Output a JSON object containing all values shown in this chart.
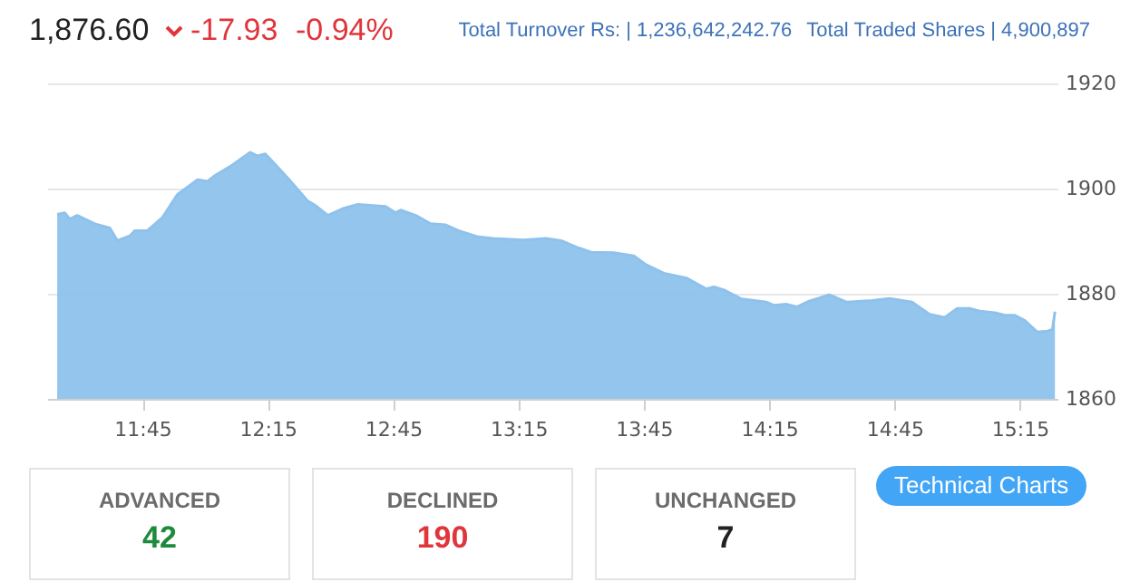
{
  "chart_data": [
    {
      "type": "area",
      "title": "1,876.60",
      "annotations": [
        "-17.93",
        "-0.94%",
        "Total Turnover Rs: | 1,236,642,242.76",
        "Total Traded Shares | 4,900,897"
      ],
      "series": [
        {
          "color": "#8ec2ec",
          "x": [
            11.41,
            11.44,
            11.46,
            11.49,
            11.56,
            11.62,
            11.65,
            11.7,
            11.72,
            11.77,
            11.83,
            11.89,
            11.97,
            12.01,
            12.04,
            12.1,
            12.18,
            12.21,
            12.24,
            12.27,
            12.33,
            12.41,
            12.44,
            12.49,
            12.55,
            12.61,
            12.72,
            12.76,
            12.78,
            12.84,
            12.9,
            12.96,
            13.01,
            13.09,
            13.15,
            13.27,
            13.36,
            13.42,
            13.49,
            13.54,
            13.63,
            13.71,
            13.76,
            13.83,
            13.92,
            14.0,
            14.03,
            14.07,
            14.14,
            14.24,
            14.27,
            14.32,
            14.36,
            14.41,
            14.49,
            14.56,
            14.66,
            14.73,
            14.82,
            14.89,
            14.95,
            15.0,
            15.05,
            15.09,
            15.15,
            15.19,
            15.23,
            15.27,
            15.32,
            15.36,
            15.38,
            15.39
          ],
          "values": [
            1895.1,
            1895.4,
            1894.2,
            1894.9,
            1893.3,
            1892.5,
            1890.1,
            1891,
            1892,
            1892,
            1894.5,
            1898.9,
            1901.7,
            1901.4,
            1902.5,
            1904.2,
            1906.9,
            1906.2,
            1906.6,
            1905.1,
            1902,
            1897.6,
            1896.8,
            1894.9,
            1896.2,
            1897,
            1896.6,
            1895.4,
            1895.9,
            1894.9,
            1893.3,
            1893.1,
            1892,
            1890.8,
            1890.5,
            1890.2,
            1890.5,
            1890.1,
            1888.7,
            1887.9,
            1887.8,
            1887.2,
            1885.5,
            1883.9,
            1883,
            1880.9,
            1881.3,
            1880.7,
            1879,
            1878.4,
            1877.8,
            1878,
            1877.5,
            1878.6,
            1879.8,
            1878.4,
            1878.7,
            1879.1,
            1878.4,
            1876.1,
            1875.5,
            1877.2,
            1877.2,
            1876.7,
            1876.4,
            1875.9,
            1875.9,
            1874.9,
            1872.7,
            1872.9,
            1873.2,
            1876.6
          ]
        }
      ],
      "xlim": [
        11.37,
        15.4
      ],
      "xticks": [
        {
          "value": 11.75,
          "label": "11:45"
        },
        {
          "value": 12.25,
          "label": "12:15"
        },
        {
          "value": 12.75,
          "label": "12:45"
        },
        {
          "value": 13.25,
          "label": "13:15"
        },
        {
          "value": 13.75,
          "label": "13:45"
        },
        {
          "value": 14.25,
          "label": "14:15"
        },
        {
          "value": 14.75,
          "label": "14:45"
        },
        {
          "value": 15.25,
          "label": "15:15"
        }
      ],
      "ylim": [
        1860,
        1920
      ],
      "yticks": [
        1860,
        1880,
        1900,
        1920
      ],
      "grid": "y"
    },
    {
      "type": "other",
      "categories": [
        "ADVANCED",
        "DECLINED",
        "UNCHANGED"
      ],
      "values": [
        42,
        190,
        7
      ],
      "colors": [
        "#1e8a3c",
        "#e0353b",
        "#222222"
      ],
      "data_labels": true,
      "annotations": [
        "Technical Charts"
      ]
    }
  ]
}
